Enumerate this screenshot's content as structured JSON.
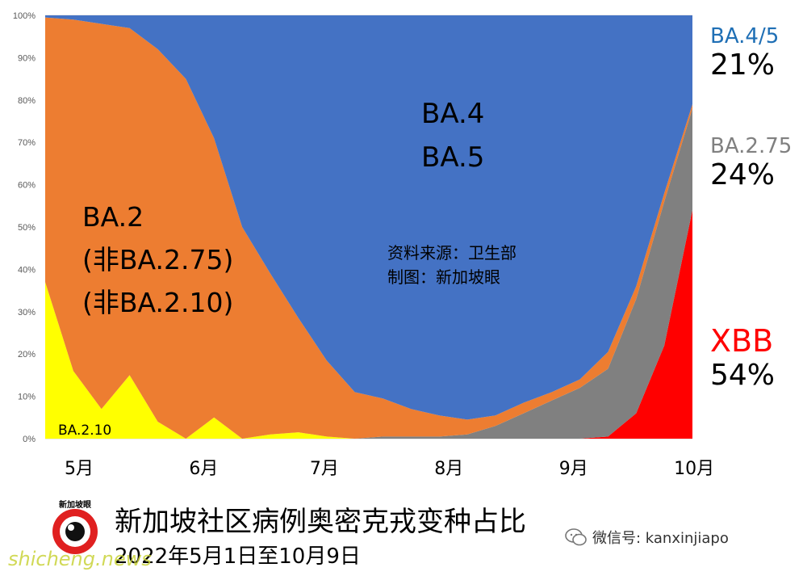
{
  "chart_data": {
    "type": "area",
    "stacked": true,
    "y_ticks": [
      "0%",
      "10%",
      "20%",
      "30%",
      "40%",
      "50%",
      "60%",
      "70%",
      "80%",
      "90%",
      "100%"
    ],
    "ylim": [
      0,
      100
    ],
    "x_month_labels": [
      "5月",
      "6月",
      "7月",
      "8月",
      "9月",
      "10月"
    ],
    "x": [
      "2022-05-01",
      "2022-05-08",
      "2022-05-15",
      "2022-05-22",
      "2022-05-29",
      "2022-06-05",
      "2022-06-12",
      "2022-06-19",
      "2022-06-26",
      "2022-07-03",
      "2022-07-10",
      "2022-07-17",
      "2022-07-24",
      "2022-07-31",
      "2022-08-07",
      "2022-08-14",
      "2022-08-21",
      "2022-08-28",
      "2022-09-04",
      "2022-09-11",
      "2022-09-18",
      "2022-09-25",
      "2022-10-02",
      "2022-10-09"
    ],
    "series": [
      {
        "name": "BA.2.10",
        "color": "#ffff00",
        "values": [
          37,
          16,
          7,
          15,
          4,
          0,
          5,
          0,
          1,
          1.5,
          0.5,
          0,
          0,
          0,
          0,
          0,
          0,
          0,
          0,
          0,
          0,
          0,
          0,
          0
        ]
      },
      {
        "name": "XBB",
        "color": "#ff0000",
        "values": [
          0,
          0,
          0,
          0,
          0,
          0,
          0,
          0,
          0,
          0,
          0,
          0,
          0,
          0,
          0,
          0,
          0,
          0,
          0,
          0,
          0.5,
          6,
          22,
          54
        ]
      },
      {
        "name": "BA.2.75",
        "color": "#808080",
        "values": [
          0,
          0,
          0,
          0,
          0,
          0,
          0,
          0,
          0,
          0,
          0,
          0,
          0.5,
          0.5,
          0.5,
          1,
          3,
          6,
          9,
          12,
          16,
          27,
          34,
          24
        ]
      },
      {
        "name": "BA.2",
        "color": "#ed7d31",
        "values": [
          62.5,
          83,
          91,
          82,
          88,
          85,
          66,
          50,
          38,
          27,
          18,
          11,
          9,
          6.5,
          5,
          3.5,
          2.5,
          2.5,
          2,
          2,
          4,
          3,
          2,
          1
        ]
      },
      {
        "name": "BA.4/5",
        "color": "#4472c4",
        "values": [
          0.5,
          1,
          2,
          3,
          8,
          15,
          29,
          50,
          61,
          71.5,
          81.5,
          89,
          90.5,
          93,
          94.5,
          95.5,
          94.5,
          91.5,
          89,
          86,
          79.5,
          64,
          42,
          21
        ]
      }
    ],
    "annotations": {
      "ba45": [
        "BA.4",
        "BA.5"
      ],
      "ba2": [
        "BA.2",
        "(非BA.2.75)",
        "(非BA.2.10)"
      ],
      "ba210": "BA.2.10",
      "source_lines": [
        "资料来源：卫生部",
        "制图：新加坡眼"
      ]
    },
    "legend": [
      {
        "name": "BA.4/5",
        "pct": "21%",
        "color": "#1f6fb5"
      },
      {
        "name": "BA.2.75",
        "pct": "24%",
        "color": "#808080"
      },
      {
        "name": "XBB",
        "pct": "54%",
        "color": "#ff0000"
      }
    ],
    "title": "新加坡社区病例奥密克戎变种占比",
    "subtitle": "2022年5月1日至10月9日"
  },
  "branding": {
    "logo_text": "新加坡眼",
    "wechat_label": "微信号: kanxinjiapo",
    "site_watermark": "shicheng.news"
  }
}
